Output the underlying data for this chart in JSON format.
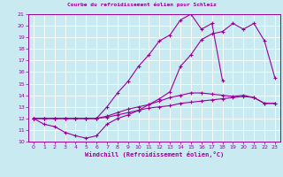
{
  "title": "Courbe du refroidissement éolien pour Schleiz",
  "xlabel": "Windchill (Refroidissement éolien,°C)",
  "bg_color": "#c8eaf0",
  "line_color": "#990099",
  "grid_color": "#ffffff",
  "xlim": [
    -0.5,
    23.5
  ],
  "ylim": [
    10,
    21
  ],
  "yticks": [
    10,
    11,
    12,
    13,
    14,
    15,
    16,
    17,
    18,
    19,
    20,
    21
  ],
  "xticks": [
    0,
    1,
    2,
    3,
    4,
    5,
    6,
    7,
    8,
    9,
    10,
    11,
    12,
    13,
    14,
    15,
    16,
    17,
    18,
    19,
    20,
    21,
    22,
    23
  ],
  "line1_x": [
    0,
    1,
    2,
    3,
    4,
    5,
    6,
    7,
    8,
    9,
    10,
    11,
    12,
    13,
    14,
    15,
    16,
    17,
    18,
    19,
    20,
    21,
    22,
    23
  ],
  "line1_y": [
    12,
    11.5,
    11.3,
    10.8,
    10.5,
    10.3,
    10.5,
    11.5,
    12.0,
    12.3,
    12.7,
    13.2,
    13.7,
    14.3,
    16.5,
    17.5,
    18.8,
    19.3,
    19.5,
    20.2,
    19.7,
    20.2,
    18.7,
    15.5
  ],
  "line2_x": [
    0,
    1,
    2,
    3,
    4,
    5,
    6,
    7,
    8,
    9,
    10,
    11,
    12,
    13,
    14,
    15,
    16,
    17,
    18,
    19,
    20,
    21,
    22,
    23
  ],
  "line2_y": [
    12,
    12,
    12,
    12,
    12,
    12,
    12,
    12.1,
    12.3,
    12.5,
    12.7,
    12.9,
    13.0,
    13.1,
    13.3,
    13.4,
    13.5,
    13.6,
    13.7,
    13.8,
    13.9,
    13.8,
    13.3,
    13.3
  ],
  "line3_x": [
    0,
    1,
    2,
    3,
    4,
    5,
    6,
    7,
    8,
    9,
    10,
    11,
    12,
    13,
    14,
    15,
    16,
    17,
    18,
    19,
    20,
    21,
    22,
    23
  ],
  "line3_y": [
    12,
    12,
    12,
    12,
    12,
    12,
    12,
    12.2,
    12.5,
    12.8,
    13.0,
    13.2,
    13.5,
    13.8,
    14.0,
    14.2,
    14.2,
    14.1,
    14.0,
    13.9,
    14.0,
    13.8,
    13.3,
    13.3
  ],
  "line4_x": [
    0,
    1,
    2,
    3,
    4,
    5,
    6,
    7,
    8,
    9,
    10,
    11,
    12,
    13,
    14,
    15,
    16,
    17,
    18
  ],
  "line4_y": [
    12,
    12,
    12,
    12,
    12,
    12,
    12.0,
    13.0,
    14.2,
    15.2,
    16.5,
    17.5,
    18.7,
    19.2,
    20.5,
    21.0,
    19.7,
    20.2,
    15.3
  ]
}
